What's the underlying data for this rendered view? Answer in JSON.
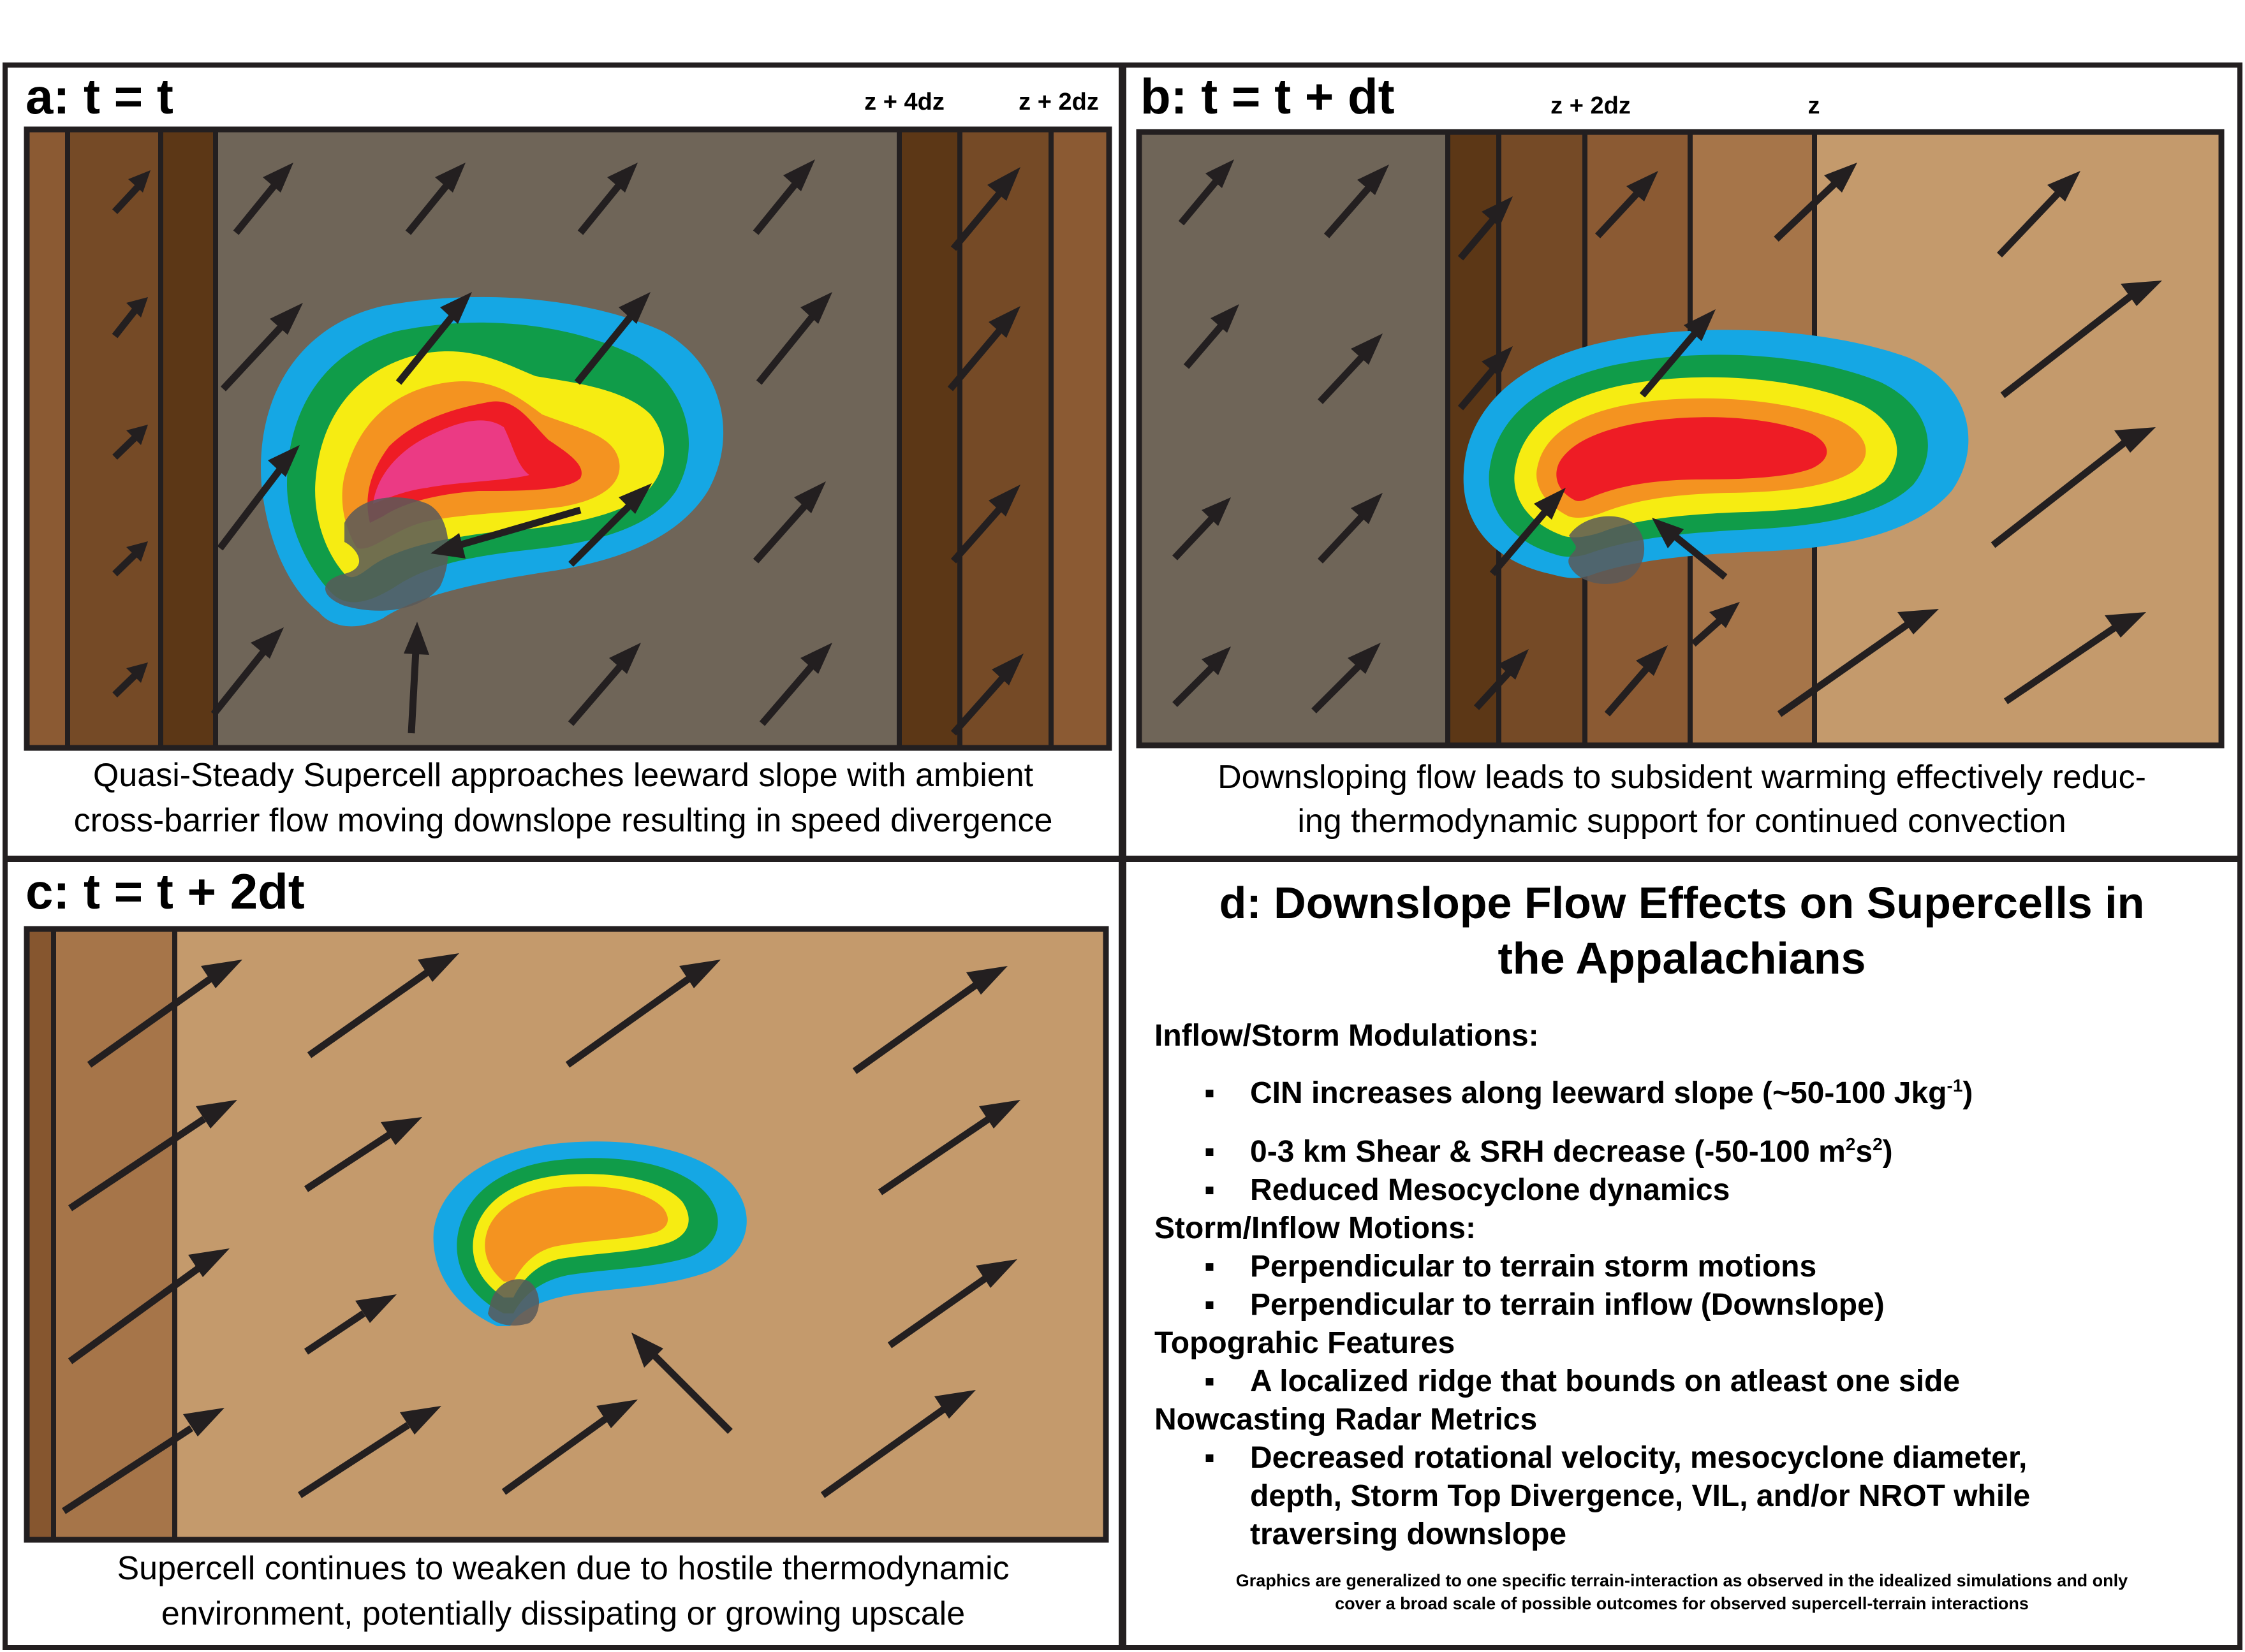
{
  "colors": {
    "gray_ground": "#6f6558",
    "dark_brown": "#5c3716",
    "mid_brown": "#86562f",
    "brown_2": "#8b5a33",
    "light_brown": "#a67549",
    "tan": "#c49a6c",
    "reflectivity": [
      "#15a7e4",
      "#109c49",
      "#f6ec12",
      "#f49320",
      "#ee1c25",
      "#eb3a84"
    ],
    "mesocyclone": "#595959"
  },
  "panel_a": {
    "title": "a: t = t",
    "z_labels": [
      "z + 4dz",
      "z + 2dz"
    ],
    "caption": [
      "Quasi-Steady Supercell approaches leeward slope with ambient",
      "cross-barrier flow moving downslope resulting in speed divergence"
    ]
  },
  "panel_b": {
    "title": "b: t = t + dt",
    "z_labels": [
      "z + 2dz",
      "z"
    ],
    "caption": [
      "Downsloping flow leads to subsident warming effectively reduc-",
      "ing thermodynamic support for continued convection"
    ]
  },
  "panel_c": {
    "title": "c: t = t + 2dt",
    "caption": [
      "Supercell continues to weaken due to hostile thermodynamic",
      "environment, potentially dissipating or growing upscale"
    ]
  },
  "panel_d": {
    "title": [
      "d: Downslope Flow Effects on Supercells in",
      "the Appalachians"
    ],
    "sections": [
      {
        "heading": "Inflow/Storm Modulations:",
        "items": [
          {
            "text": "CIN increases along leeward slope (~50-100 Jkg",
            "sup": "-1",
            "after": ")"
          },
          {
            "text": "0-3 km Shear & SRH decrease (-50-100 m",
            "sup": "2",
            "mid": "s",
            "sup2": "2",
            "after": ")"
          },
          {
            "text": "Reduced Mesocyclone dynamics"
          }
        ]
      },
      {
        "heading": "Storm/Inflow Motions:",
        "items": [
          {
            "text": "Perpendicular to terrain storm motions"
          },
          {
            "text": "Perpendicular to terrain inflow (Downslope)"
          }
        ]
      },
      {
        "heading": "Topograhic Features",
        "items": [
          {
            "text": "A localized ridge that bounds on atleast one side"
          }
        ]
      },
      {
        "heading": "Nowcasting Radar Metrics",
        "items": [
          {
            "lines": [
              "Decreased rotational velocity, mesocyclone diameter,",
              "depth, Storm Top Divergence, VIL, and/or NROT while",
              "traversing downslope"
            ]
          }
        ]
      }
    ],
    "bullet": "▪",
    "note": [
      "Graphics are generalized to one specific terrain-interaction as observed in the idealized simulations and only",
      "cover a broad scale of possible outcomes for observed supercell-terrain interactions"
    ]
  }
}
